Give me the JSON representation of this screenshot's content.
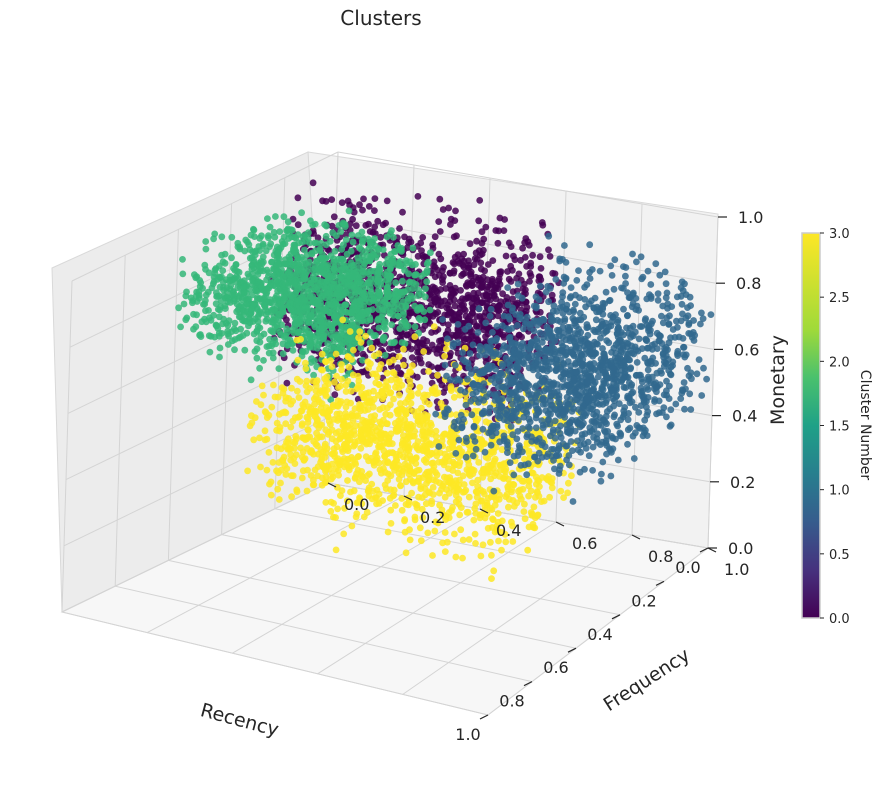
{
  "chart_data": {
    "type": "scatter",
    "projection": "3d",
    "title": "Clusters",
    "xlabel": "Recency",
    "ylabel": "Frequency",
    "zlabel": "Monetary",
    "xlim": [
      0.0,
      1.0
    ],
    "ylim": [
      0.0,
      1.0
    ],
    "zlim": [
      0.0,
      1.0
    ],
    "x_ticks": [
      "0.0",
      "0.2",
      "0.4",
      "0.6",
      "0.8",
      "1.0"
    ],
    "y_ticks": [
      "0.0",
      "0.2",
      "0.4",
      "0.6",
      "0.8",
      "1.0"
    ],
    "z_ticks": [
      "0.0",
      "0.2",
      "0.4",
      "0.6",
      "0.8",
      "1.0"
    ],
    "grid": true,
    "colorbar": {
      "label": "Cluster Number",
      "range": [
        0.0,
        3.0
      ],
      "ticks": [
        "0.0",
        "0.5",
        "1.0",
        "1.5",
        "2.0",
        "2.5",
        "3.0"
      ],
      "colormap": "viridis"
    },
    "series": [
      {
        "cluster": 0,
        "color": "#440154",
        "recency": [
          0.0,
          0.25
        ],
        "frequency": [
          0.0,
          0.6
        ],
        "monetary": [
          0.3,
          1.0
        ]
      },
      {
        "cluster": 1,
        "color": "#31688e",
        "recency": [
          0.0,
          0.55
        ],
        "frequency": [
          0.6,
          1.0
        ],
        "monetary": [
          0.3,
          0.95
        ]
      },
      {
        "cluster": 2,
        "color": "#35b779",
        "recency": [
          0.2,
          0.6
        ],
        "frequency": [
          0.0,
          0.4
        ],
        "monetary": [
          0.55,
          1.0
        ]
      },
      {
        "cluster": 3,
        "color": "#fde725",
        "recency": [
          0.6,
          1.0
        ],
        "frequency": [
          0.4,
          1.0
        ],
        "monetary": [
          0.3,
          0.95
        ]
      }
    ]
  }
}
